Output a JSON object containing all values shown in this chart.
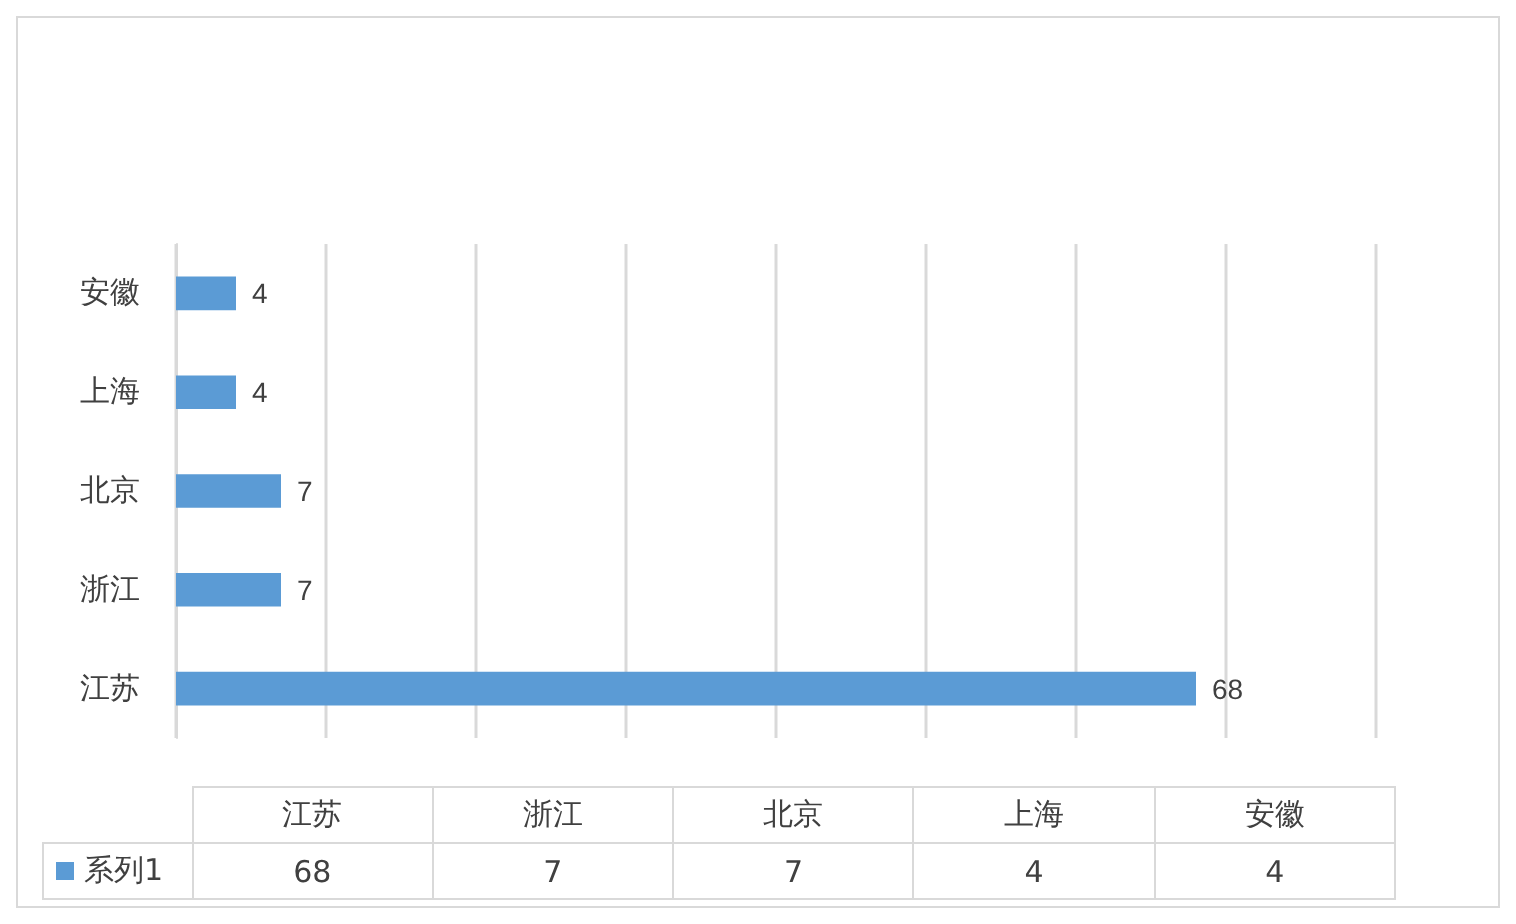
{
  "chart_data": [
    {
      "type": "bar",
      "orientation": "horizontal",
      "categories": [
        "安徽",
        "上海",
        "北京",
        "浙江",
        "江苏"
      ],
      "series": [
        {
          "color": "#5b9bd5",
          "values": [
            4,
            4,
            7,
            7,
            68
          ]
        }
      ],
      "xlim": [
        0,
        80
      ],
      "xticks": [
        {
          "value": 0,
          "label": null
        },
        {
          "value": 10,
          "label": null
        },
        {
          "value": 20,
          "label": null
        },
        {
          "value": 30,
          "label": null
        },
        {
          "value": 40,
          "label": null
        },
        {
          "value": 50,
          "label": null
        },
        {
          "value": 60,
          "label": null
        },
        {
          "value": 70,
          "label": null
        },
        {
          "value": 80,
          "label": null
        }
      ],
      "grid": "x",
      "tick_labels": "y",
      "data_labels": true
    },
    {
      "type": "other",
      "categories": [
        "江苏",
        "浙江",
        "北京",
        "上海",
        "安徽"
      ],
      "series": [
        {
          "name": "系列1",
          "color": "#5b9bd5",
          "values": [
            68,
            7,
            7,
            4,
            4
          ]
        }
      ],
      "data_labels": true
    }
  ]
}
